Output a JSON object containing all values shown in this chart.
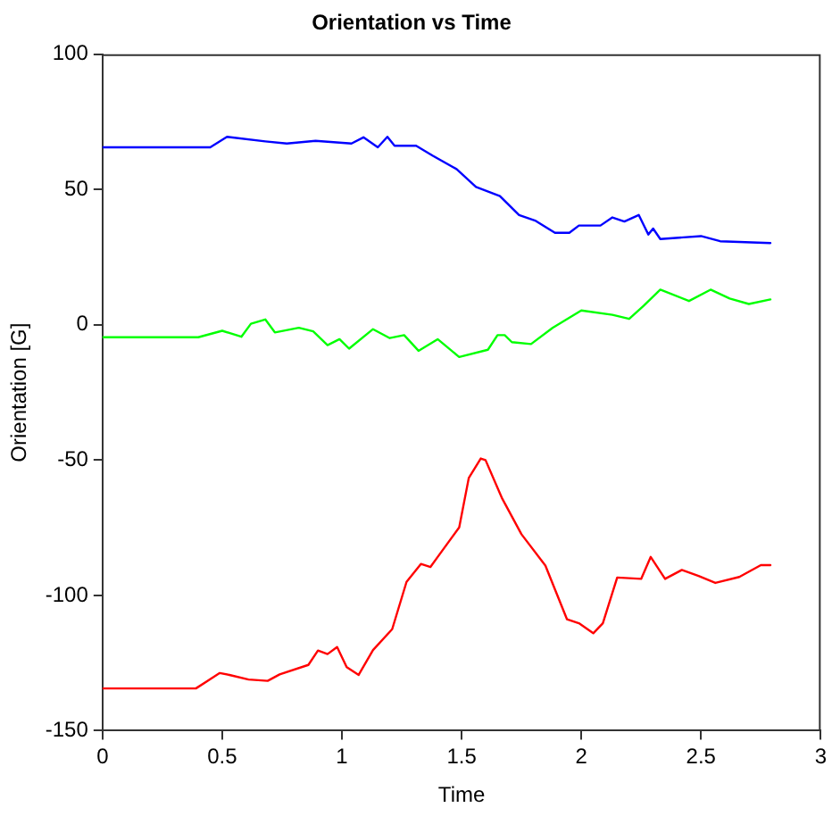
{
  "chart_data": {
    "type": "line",
    "title": "Orientation vs Time",
    "xlabel": "Time",
    "ylabel": "Orientation [G]",
    "xlim": [
      0,
      3
    ],
    "xticks": [
      0,
      0.5,
      1,
      1.5,
      2,
      2.5,
      3
    ],
    "ylim": [
      -150,
      100
    ],
    "yticks": [
      -150,
      -100,
      -50,
      0,
      50,
      100
    ],
    "grid": false,
    "legend": false,
    "marker": "none",
    "line_style": "solid",
    "series": [
      {
        "color": "#0000ff",
        "x": [
          0,
          0.45,
          0.52,
          0.68,
          0.77,
          0.89,
          1.04,
          1.09,
          1.15,
          1.19,
          1.22,
          1.31,
          1.38,
          1.48,
          1.56,
          1.66,
          1.74,
          1.81,
          1.89,
          1.95,
          1.99,
          2.08,
          2.13,
          2.18,
          2.24,
          2.28,
          2.3,
          2.33,
          2.5,
          2.58,
          2.79
        ],
        "values": [
          65.6,
          65.6,
          69.5,
          67.8,
          67,
          68,
          67,
          69.3,
          65.6,
          69.5,
          66.2,
          66.2,
          62.5,
          57.5,
          51,
          47.6,
          40.6,
          38.4,
          34,
          34,
          36.7,
          36.7,
          39.7,
          38.2,
          40.6,
          33.4,
          35.6,
          31.7,
          32.8,
          30.9,
          30.2
        ]
      },
      {
        "color": "#00ff00",
        "x": [
          0,
          0.4,
          0.5,
          0.58,
          0.62,
          0.68,
          0.72,
          0.82,
          0.88,
          0.94,
          0.99,
          1.03,
          1.13,
          1.2,
          1.26,
          1.32,
          1.4,
          1.49,
          1.61,
          1.65,
          1.68,
          1.71,
          1.79,
          1.88,
          2,
          2.13,
          2.2,
          2.26,
          2.33,
          2.45,
          2.54,
          2.62,
          2.7,
          2.79
        ],
        "values": [
          -4.6,
          -4.6,
          -2.2,
          -4.4,
          0.4,
          2,
          -2.8,
          -1.1,
          -2.4,
          -7.5,
          -5.3,
          -8.8,
          -1.6,
          -4.9,
          -3.8,
          -9.6,
          -5.3,
          -11.9,
          -9.2,
          -3.8,
          -3.8,
          -6.4,
          -7.1,
          -1.1,
          5.3,
          3.7,
          2.2,
          7,
          13,
          8.8,
          13,
          9.7,
          7.7,
          9.4
        ]
      },
      {
        "color": "#ff0000",
        "x": [
          0,
          0.39,
          0.49,
          0.53,
          0.61,
          0.69,
          0.74,
          0.86,
          0.9,
          0.94,
          0.98,
          1.02,
          1.07,
          1.13,
          1.21,
          1.27,
          1.33,
          1.37,
          1.4,
          1.49,
          1.53,
          1.58,
          1.6,
          1.67,
          1.75,
          1.85,
          1.94,
          1.99,
          2.05,
          2.09,
          2.15,
          2.25,
          2.29,
          2.35,
          2.42,
          2.49,
          2.56,
          2.66,
          2.75,
          2.79
        ],
        "values": [
          -134.4,
          -134.4,
          -128.7,
          -129.4,
          -131.1,
          -131.6,
          -129.2,
          -125.7,
          -120.4,
          -121.7,
          -119.1,
          -126.5,
          -129.4,
          -120.2,
          -112.5,
          -95,
          -88.4,
          -89.5,
          -85.8,
          -74.9,
          -56.6,
          -49.4,
          -50,
          -64.3,
          -77.4,
          -89,
          -108.8,
          -110.3,
          -114,
          -110.3,
          -93.4,
          -93.9,
          -85.8,
          -93.9,
          -90.6,
          -92.8,
          -95.4,
          -93.2,
          -88.8,
          -88.8
        ]
      }
    ]
  }
}
